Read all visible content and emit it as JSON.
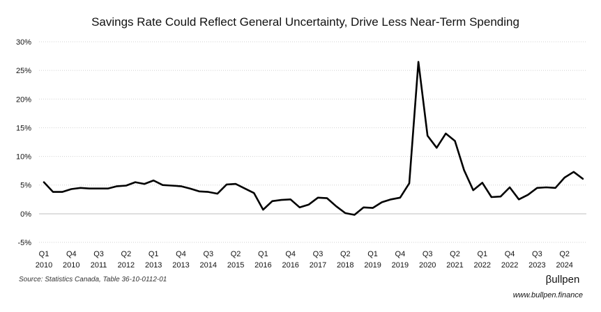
{
  "chart_data": {
    "type": "line",
    "title": "Savings Rate Could Reflect General Uncertainty, Drive Less Near-Term Spending",
    "xlabel": "",
    "ylabel": "",
    "ylim": [
      -5,
      30
    ],
    "y_ticks": [
      30,
      25,
      20,
      15,
      10,
      5,
      0,
      -5
    ],
    "y_tick_labels": [
      "30%",
      "25%",
      "20%",
      "15%",
      "10%",
      "5%",
      "0%",
      "-5%"
    ],
    "y_grid": true,
    "x_start": "Q1 2010",
    "x_ticks": [
      {
        "index": 0,
        "q": "Q1",
        "year": "2010"
      },
      {
        "index": 3,
        "q": "Q4",
        "year": "2010"
      },
      {
        "index": 6,
        "q": "Q3",
        "year": "2011"
      },
      {
        "index": 9,
        "q": "Q2",
        "year": "2012"
      },
      {
        "index": 12,
        "q": "Q1",
        "year": "2013"
      },
      {
        "index": 15,
        "q": "Q4",
        "year": "2013"
      },
      {
        "index": 18,
        "q": "Q3",
        "year": "2014"
      },
      {
        "index": 21,
        "q": "Q2",
        "year": "2015"
      },
      {
        "index": 24,
        "q": "Q1",
        "year": "2016"
      },
      {
        "index": 27,
        "q": "Q4",
        "year": "2016"
      },
      {
        "index": 30,
        "q": "Q3",
        "year": "2017"
      },
      {
        "index": 33,
        "q": "Q2",
        "year": "2018"
      },
      {
        "index": 36,
        "q": "Q1",
        "year": "2019"
      },
      {
        "index": 39,
        "q": "Q4",
        "year": "2019"
      },
      {
        "index": 42,
        "q": "Q3",
        "year": "2020"
      },
      {
        "index": 45,
        "q": "Q2",
        "year": "2021"
      },
      {
        "index": 48,
        "q": "Q1",
        "year": "2022"
      },
      {
        "index": 51,
        "q": "Q4",
        "year": "2022"
      },
      {
        "index": 54,
        "q": "Q3",
        "year": "2023"
      },
      {
        "index": 57,
        "q": "Q2",
        "year": "2024"
      }
    ],
    "series": [
      {
        "name": "",
        "color": "#000000",
        "values": [
          5.5,
          3.8,
          3.8,
          4.3,
          4.5,
          4.4,
          4.4,
          4.4,
          4.8,
          4.9,
          5.5,
          5.2,
          5.8,
          5.0,
          4.9,
          4.8,
          4.4,
          3.9,
          3.8,
          3.5,
          5.1,
          5.2,
          4.4,
          3.6,
          0.7,
          2.2,
          2.4,
          2.5,
          1.1,
          1.6,
          2.8,
          2.7,
          1.3,
          0.1,
          -0.2,
          1.1,
          1.0,
          2.0,
          2.5,
          2.8,
          5.3,
          26.5,
          13.6,
          11.5,
          14.0,
          12.7,
          7.6,
          4.1,
          5.4,
          2.9,
          3.0,
          4.6,
          2.5,
          3.3,
          4.5,
          4.6,
          4.5,
          6.3,
          7.3,
          6.1
        ]
      }
    ]
  },
  "footer": {
    "source": "Source: Statistics Canada, Table 36-10-0112-01",
    "brand": "βullpen",
    "url": "www.bullpen.finance"
  }
}
